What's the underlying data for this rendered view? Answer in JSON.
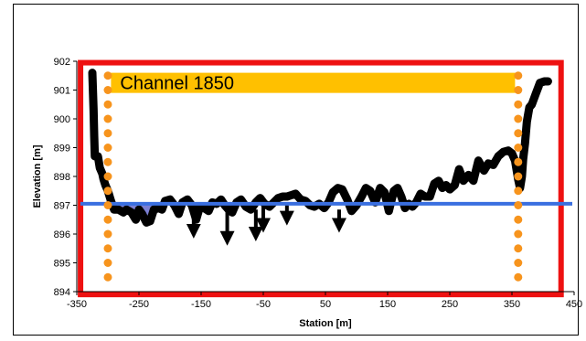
{
  "chart_data": {
    "type": "line",
    "title": "",
    "xlabel": "Station [m]",
    "ylabel": "Elevation [m]",
    "xlim": [
      -350,
      450
    ],
    "ylim": [
      894,
      902
    ],
    "x_ticks": [
      -350,
      -250,
      -150,
      -50,
      50,
      150,
      250,
      350,
      450
    ],
    "y_ticks": [
      894,
      895,
      896,
      897,
      898,
      899,
      900,
      901,
      902
    ],
    "grid": false,
    "legend": "none",
    "annotations": [
      {
        "text": "Channel 1850",
        "x_from": -295,
        "x_to": 355,
        "y_from": 900.9,
        "y_to": 901.6,
        "color": "#FFC000"
      }
    ],
    "reference_lines": {
      "water_surface": {
        "y": 897.05,
        "color": "#3A6FE0"
      },
      "channel_banks": [
        {
          "x": -300,
          "color": "#F7941D"
        },
        {
          "x": 360,
          "color": "#F7941D"
        }
      ],
      "channel_extent_box": {
        "x_from": -344,
        "x_to": 429,
        "y_from": 893.9,
        "y_to": 901.95,
        "color": "#EE1111"
      }
    },
    "series": [
      {
        "color": "#000000",
        "x": [
          -325,
          -323,
          -322,
          -321,
          -316,
          -313,
          -309,
          -307,
          -304,
          -300,
          -295,
          -290,
          -283,
          -275,
          -270,
          -262,
          -255,
          -250,
          -245,
          -238,
          -232,
          -226,
          -218,
          -213,
          -208,
          -200,
          -193,
          -186,
          -180,
          -172,
          -165,
          -158,
          -152,
          -145,
          -138,
          -132,
          -125,
          -118,
          -112,
          -106,
          -100,
          -93,
          -86,
          -78,
          -70,
          -62,
          -55,
          -48,
          -40,
          -33,
          -26,
          -19,
          -12,
          -5,
          2,
          10,
          18,
          25,
          32,
          40,
          48,
          55,
          62,
          70,
          77,
          85,
          92,
          100,
          108,
          115,
          122,
          130,
          138,
          145,
          152,
          160,
          166,
          172,
          178,
          184,
          190,
          196,
          203,
          210,
          218,
          225,
          232,
          238,
          244,
          250,
          258,
          265,
          272,
          280,
          288,
          296,
          305,
          312,
          320,
          328,
          336,
          344,
          350,
          355,
          360,
          363,
          366,
          368,
          371,
          374,
          378,
          382,
          388,
          395,
          402,
          408
        ],
        "values": [
          901.6,
          900.3,
          899.4,
          898.7,
          898.7,
          898.3,
          898.1,
          897.9,
          897.7,
          897.5,
          897.15,
          896.85,
          896.85,
          896.75,
          896.85,
          896.75,
          896.5,
          896.85,
          896.7,
          896.4,
          896.45,
          896.85,
          896.9,
          896.85,
          897.15,
          897.2,
          897.0,
          896.7,
          897.1,
          897.2,
          897.0,
          896.5,
          896.95,
          896.9,
          896.8,
          897.1,
          897.05,
          897.2,
          897.0,
          896.85,
          896.75,
          897.1,
          897.2,
          896.95,
          896.85,
          897.1,
          897.25,
          897.05,
          896.95,
          897.1,
          897.25,
          897.3,
          897.3,
          897.35,
          897.4,
          897.2,
          897.15,
          897.0,
          896.95,
          897.05,
          896.9,
          897.1,
          897.45,
          897.6,
          897.55,
          897.2,
          896.8,
          897.0,
          897.3,
          897.6,
          897.5,
          897.1,
          897.6,
          897.45,
          896.8,
          897.5,
          897.6,
          897.3,
          896.9,
          897.05,
          896.95,
          897.1,
          897.4,
          897.3,
          897.3,
          897.75,
          897.85,
          897.6,
          897.7,
          897.55,
          897.7,
          898.25,
          897.85,
          898.05,
          897.85,
          898.55,
          898.2,
          898.45,
          898.4,
          898.7,
          898.85,
          898.9,
          898.8,
          898.55,
          897.9,
          897.6,
          898.0,
          898.6,
          899.15,
          899.9,
          900.4,
          900.5,
          900.85,
          901.25,
          901.3,
          901.3
        ]
      }
    ],
    "scour_arrows": [
      {
        "x": -162,
        "y_from": 896.7,
        "y_to": 896.1
      },
      {
        "x": -108,
        "y_from": 896.85,
        "y_to": 895.85
      },
      {
        "x": -62,
        "y_from": 896.85,
        "y_to": 896.0
      },
      {
        "x": -50,
        "y_from": 897.0,
        "y_to": 896.3
      },
      {
        "x": -12,
        "y_from": 897.05,
        "y_to": 896.55
      },
      {
        "x": 72,
        "y_from": 896.85,
        "y_to": 896.3
      }
    ]
  }
}
